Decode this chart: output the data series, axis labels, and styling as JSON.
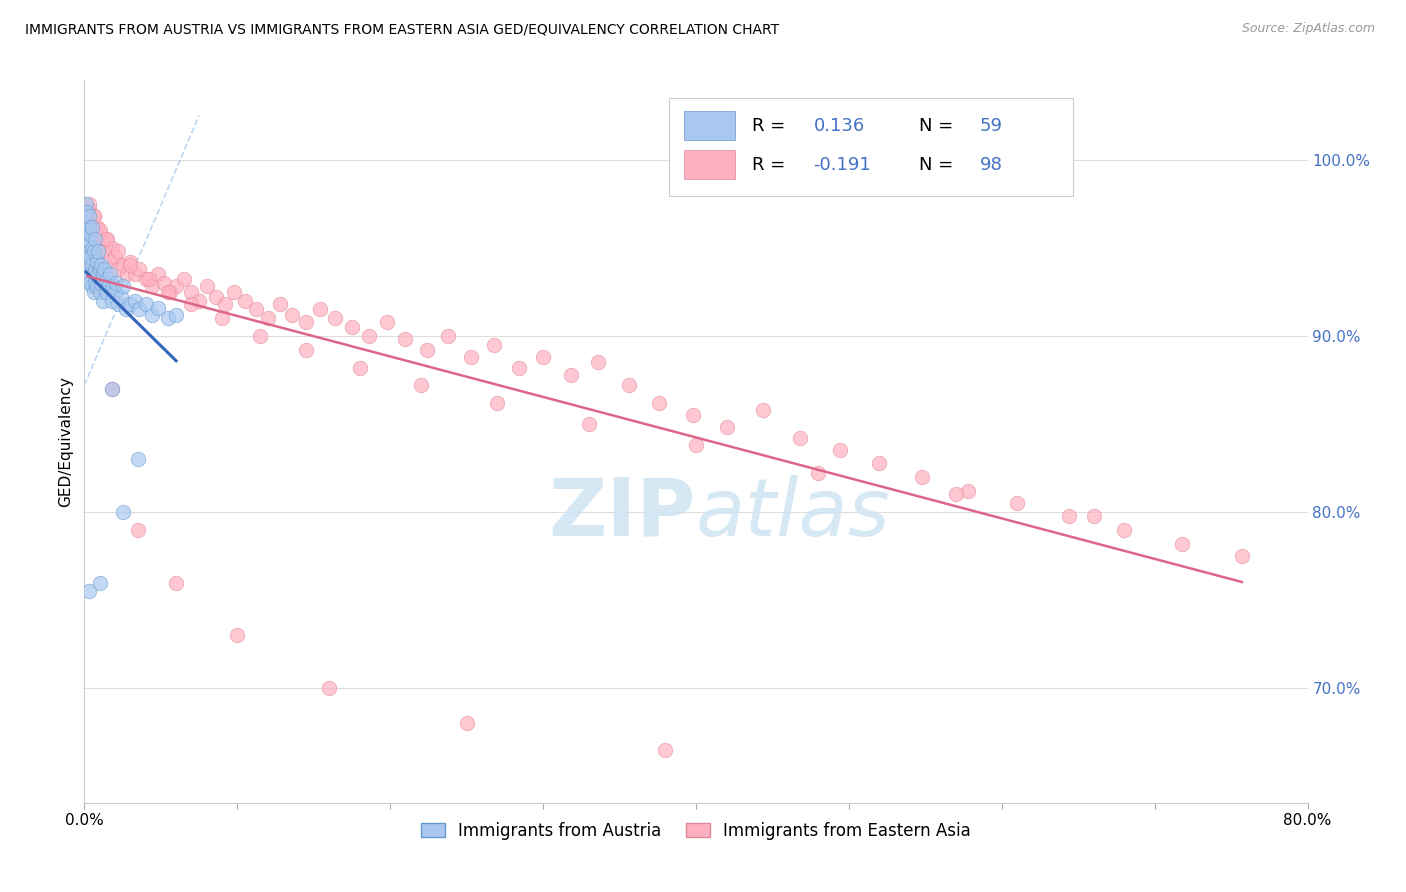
{
  "title": "IMMIGRANTS FROM AUSTRIA VS IMMIGRANTS FROM EASTERN ASIA GED/EQUIVALENCY CORRELATION CHART",
  "source": "Source: ZipAtlas.com",
  "ylabel": "GED/Equivalency",
  "x_min": 0.0,
  "x_max": 0.8,
  "y_min": 0.635,
  "y_max": 1.045,
  "right_yticks": [
    0.7,
    0.8,
    0.9,
    1.0
  ],
  "right_yticklabels": [
    "70.0%",
    "80.0%",
    "90.0%",
    "100.0%"
  ],
  "xticks": [
    0.0,
    0.1,
    0.2,
    0.3,
    0.4,
    0.5,
    0.6,
    0.7,
    0.8
  ],
  "austria_color": "#a8c8f0",
  "austria_edge_color": "#6699cc",
  "eastern_asia_color": "#ffb0c0",
  "eastern_asia_edge_color": "#dd8899",
  "trend_austria_color": "#3366bb",
  "trend_eastern_asia_color": "#dd6688",
  "dash_color": "#99bbdd",
  "watermark_color": "#d0e4f4",
  "accent_color": "#4472c4",
  "austria_R": 0.136,
  "austria_N": 59,
  "eastern_asia_R": -0.191,
  "eastern_asia_N": 98,
  "austria_x": [
    0.001,
    0.001,
    0.002,
    0.002,
    0.002,
    0.002,
    0.003,
    0.003,
    0.003,
    0.003,
    0.004,
    0.004,
    0.004,
    0.005,
    0.005,
    0.005,
    0.005,
    0.006,
    0.006,
    0.006,
    0.007,
    0.007,
    0.007,
    0.008,
    0.008,
    0.009,
    0.009,
    0.01,
    0.01,
    0.011,
    0.011,
    0.012,
    0.012,
    0.013,
    0.014,
    0.015,
    0.016,
    0.017,
    0.018,
    0.019,
    0.02,
    0.021,
    0.022,
    0.024,
    0.025,
    0.027,
    0.03,
    0.033,
    0.036,
    0.04,
    0.044,
    0.048,
    0.055,
    0.06,
    0.003,
    0.018,
    0.025,
    0.035,
    0.01
  ],
  "austria_y": [
    0.96,
    0.975,
    0.958,
    0.97,
    0.94,
    0.952,
    0.962,
    0.948,
    0.935,
    0.968,
    0.945,
    0.958,
    0.93,
    0.95,
    0.94,
    0.928,
    0.962,
    0.935,
    0.948,
    0.925,
    0.938,
    0.955,
    0.93,
    0.942,
    0.928,
    0.935,
    0.948,
    0.938,
    0.925,
    0.94,
    0.93,
    0.935,
    0.92,
    0.938,
    0.925,
    0.932,
    0.928,
    0.935,
    0.92,
    0.928,
    0.925,
    0.93,
    0.918,
    0.922,
    0.928,
    0.915,
    0.918,
    0.92,
    0.915,
    0.918,
    0.912,
    0.916,
    0.91,
    0.912,
    0.755,
    0.87,
    0.8,
    0.83,
    0.76
  ],
  "eastern_asia_x": [
    0.002,
    0.003,
    0.004,
    0.005,
    0.006,
    0.007,
    0.008,
    0.009,
    0.01,
    0.012,
    0.014,
    0.016,
    0.018,
    0.02,
    0.022,
    0.025,
    0.028,
    0.03,
    0.033,
    0.036,
    0.04,
    0.044,
    0.048,
    0.052,
    0.056,
    0.06,
    0.065,
    0.07,
    0.075,
    0.08,
    0.086,
    0.092,
    0.098,
    0.105,
    0.112,
    0.12,
    0.128,
    0.136,
    0.145,
    0.154,
    0.164,
    0.175,
    0.186,
    0.198,
    0.21,
    0.224,
    0.238,
    0.253,
    0.268,
    0.284,
    0.3,
    0.318,
    0.336,
    0.356,
    0.376,
    0.398,
    0.42,
    0.444,
    0.468,
    0.494,
    0.52,
    0.548,
    0.578,
    0.61,
    0.644,
    0.68,
    0.718,
    0.757,
    0.003,
    0.006,
    0.01,
    0.015,
    0.022,
    0.03,
    0.042,
    0.055,
    0.07,
    0.09,
    0.115,
    0.145,
    0.18,
    0.22,
    0.27,
    0.33,
    0.4,
    0.48,
    0.57,
    0.66,
    0.008,
    0.018,
    0.035,
    0.06,
    0.1,
    0.16,
    0.25,
    0.38
  ],
  "eastern_asia_y": [
    0.965,
    0.972,
    0.958,
    0.96,
    0.968,
    0.955,
    0.962,
    0.95,
    0.958,
    0.948,
    0.955,
    0.942,
    0.95,
    0.945,
    0.938,
    0.94,
    0.935,
    0.942,
    0.935,
    0.938,
    0.932,
    0.928,
    0.935,
    0.93,
    0.925,
    0.928,
    0.932,
    0.925,
    0.92,
    0.928,
    0.922,
    0.918,
    0.925,
    0.92,
    0.915,
    0.91,
    0.918,
    0.912,
    0.908,
    0.915,
    0.91,
    0.905,
    0.9,
    0.908,
    0.898,
    0.892,
    0.9,
    0.888,
    0.895,
    0.882,
    0.888,
    0.878,
    0.885,
    0.872,
    0.862,
    0.855,
    0.848,
    0.858,
    0.842,
    0.835,
    0.828,
    0.82,
    0.812,
    0.805,
    0.798,
    0.79,
    0.782,
    0.775,
    0.975,
    0.968,
    0.96,
    0.955,
    0.948,
    0.94,
    0.932,
    0.925,
    0.918,
    0.91,
    0.9,
    0.892,
    0.882,
    0.872,
    0.862,
    0.85,
    0.838,
    0.822,
    0.81,
    0.798,
    0.935,
    0.87,
    0.79,
    0.76,
    0.73,
    0.7,
    0.68,
    0.665
  ]
}
